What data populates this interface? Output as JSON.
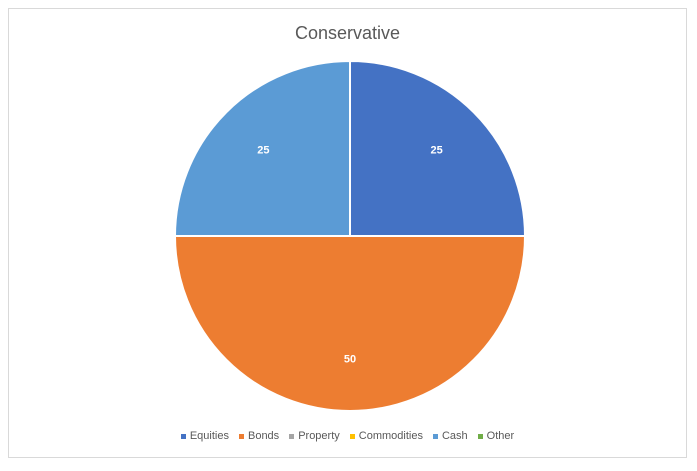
{
  "chart_data": {
    "type": "pie",
    "title": "Conservative",
    "categories": [
      "Equities",
      "Bonds",
      "Property",
      "Commodities",
      "Cash",
      "Other"
    ],
    "values": [
      25,
      50,
      0,
      0,
      25,
      0
    ],
    "colors": [
      "#4472C4",
      "#ED7D31",
      "#A5A5A5",
      "#FFC000",
      "#5B9BD5",
      "#70AD47"
    ],
    "show_data_labels": true,
    "legend": "bottom"
  }
}
